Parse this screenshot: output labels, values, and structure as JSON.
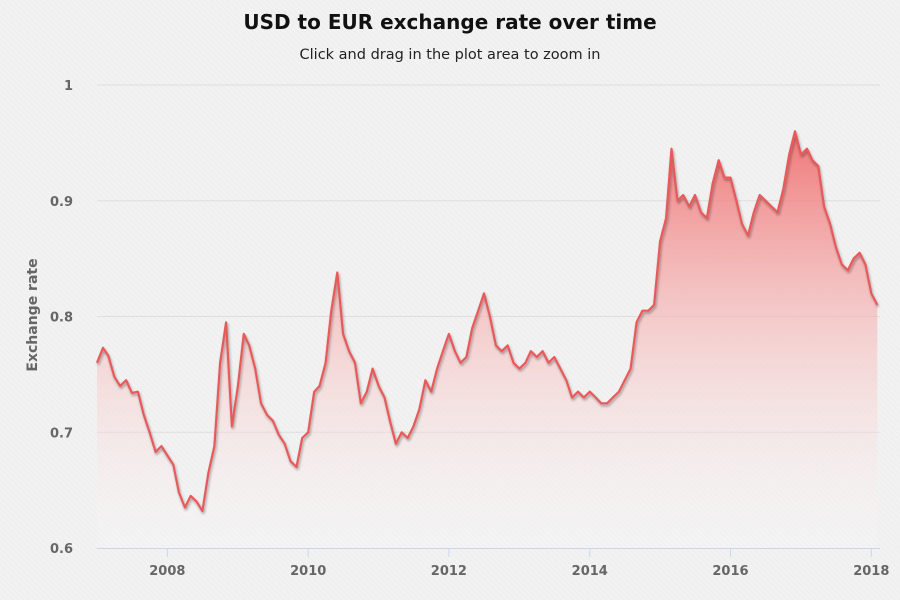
{
  "chart_data": {
    "type": "area",
    "title": "USD to EUR exchange rate over time",
    "subtitle": "Click and drag in the plot area to zoom in",
    "xlabel": "",
    "ylabel": "Exchange rate",
    "xlim": [
      "2007-01-01",
      "2018-02-15"
    ],
    "ylim": [
      0.6,
      1.0
    ],
    "x_ticks": [
      "2008",
      "2010",
      "2012",
      "2014",
      "2016",
      "2018"
    ],
    "y_ticks": [
      "0.6",
      "0.7",
      "0.8",
      "0.9",
      "1"
    ],
    "grid": true,
    "legend": "none",
    "colors": {
      "line": "#e85a5a",
      "fill_top": "#f07070",
      "fill_bottom": "#ffffff",
      "grid": "#dedede",
      "axis": "#ccd6eb"
    },
    "series": [
      {
        "x": [
          "2007-01-01",
          "2007-02-01",
          "2007-03-01",
          "2007-04-01",
          "2007-05-01",
          "2007-06-01",
          "2007-07-01",
          "2007-08-01",
          "2007-09-01",
          "2007-10-01",
          "2007-11-01",
          "2007-12-01",
          "2008-01-01",
          "2008-02-01",
          "2008-03-01",
          "2008-04-01",
          "2008-05-01",
          "2008-06-01",
          "2008-07-01",
          "2008-08-01",
          "2008-09-01",
          "2008-10-01",
          "2008-11-01",
          "2008-12-01",
          "2009-01-01",
          "2009-02-01",
          "2009-03-01",
          "2009-04-01",
          "2009-05-01",
          "2009-06-01",
          "2009-07-01",
          "2009-08-01",
          "2009-09-01",
          "2009-10-01",
          "2009-11-01",
          "2009-12-01",
          "2010-01-01",
          "2010-02-01",
          "2010-03-01",
          "2010-04-01",
          "2010-05-01",
          "2010-06-01",
          "2010-07-01",
          "2010-08-01",
          "2010-09-01",
          "2010-10-01",
          "2010-11-01",
          "2010-12-01",
          "2011-01-01",
          "2011-02-01",
          "2011-03-01",
          "2011-04-01",
          "2011-05-01",
          "2011-06-01",
          "2011-07-01",
          "2011-08-01",
          "2011-09-01",
          "2011-10-01",
          "2011-11-01",
          "2011-12-01",
          "2012-01-01",
          "2012-02-01",
          "2012-03-01",
          "2012-04-01",
          "2012-05-01",
          "2012-06-01",
          "2012-07-01",
          "2012-08-01",
          "2012-09-01",
          "2012-10-01",
          "2012-11-01",
          "2012-12-01",
          "2013-01-01",
          "2013-02-01",
          "2013-03-01",
          "2013-04-01",
          "2013-05-01",
          "2013-06-01",
          "2013-07-01",
          "2013-08-01",
          "2013-09-01",
          "2013-10-01",
          "2013-11-01",
          "2013-12-01",
          "2014-01-01",
          "2014-02-01",
          "2014-03-01",
          "2014-04-01",
          "2014-05-01",
          "2014-06-01",
          "2014-07-01",
          "2014-08-01",
          "2014-09-01",
          "2014-10-01",
          "2014-11-01",
          "2014-12-01",
          "2015-01-01",
          "2015-02-01",
          "2015-03-01",
          "2015-04-01",
          "2015-05-01",
          "2015-06-01",
          "2015-07-01",
          "2015-08-01",
          "2015-09-01",
          "2015-10-01",
          "2015-11-01",
          "2015-12-01",
          "2016-01-01",
          "2016-02-01",
          "2016-03-01",
          "2016-04-01",
          "2016-05-01",
          "2016-06-01",
          "2016-07-01",
          "2016-08-01",
          "2016-09-01",
          "2016-10-01",
          "2016-11-01",
          "2016-12-01",
          "2017-01-01",
          "2017-02-01",
          "2017-03-01",
          "2017-04-01",
          "2017-05-01",
          "2017-06-01",
          "2017-07-01",
          "2017-08-01",
          "2017-09-01",
          "2017-10-01",
          "2017-11-01",
          "2017-12-01",
          "2018-01-01",
          "2018-02-01"
        ],
        "y": [
          0.76,
          0.773,
          0.766,
          0.748,
          0.74,
          0.745,
          0.734,
          0.735,
          0.715,
          0.7,
          0.683,
          0.688,
          0.68,
          0.672,
          0.648,
          0.635,
          0.645,
          0.64,
          0.632,
          0.665,
          0.688,
          0.76,
          0.795,
          0.705,
          0.74,
          0.785,
          0.775,
          0.755,
          0.725,
          0.715,
          0.71,
          0.698,
          0.69,
          0.675,
          0.67,
          0.695,
          0.7,
          0.735,
          0.74,
          0.76,
          0.805,
          0.838,
          0.785,
          0.77,
          0.76,
          0.725,
          0.735,
          0.755,
          0.74,
          0.73,
          0.71,
          0.69,
          0.7,
          0.695,
          0.705,
          0.72,
          0.745,
          0.735,
          0.755,
          0.77,
          0.785,
          0.77,
          0.76,
          0.765,
          0.79,
          0.805,
          0.82,
          0.8,
          0.775,
          0.77,
          0.775,
          0.76,
          0.755,
          0.76,
          0.77,
          0.765,
          0.77,
          0.76,
          0.765,
          0.755,
          0.745,
          0.73,
          0.735,
          0.73,
          0.735,
          0.73,
          0.725,
          0.725,
          0.73,
          0.735,
          0.745,
          0.755,
          0.795,
          0.805,
          0.805,
          0.81,
          0.865,
          0.885,
          0.945,
          0.9,
          0.905,
          0.895,
          0.905,
          0.89,
          0.885,
          0.915,
          0.935,
          0.92,
          0.92,
          0.9,
          0.88,
          0.87,
          0.89,
          0.905,
          0.9,
          0.895,
          0.89,
          0.91,
          0.94,
          0.96,
          0.94,
          0.945,
          0.935,
          0.93,
          0.895,
          0.88,
          0.86,
          0.845,
          0.84,
          0.85,
          0.855,
          0.845,
          0.82,
          0.81
        ]
      }
    ]
  }
}
